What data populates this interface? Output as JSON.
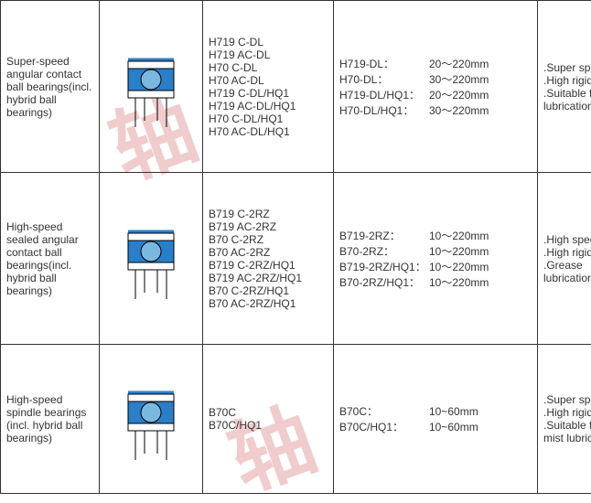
{
  "watermark": "轴",
  "rows": [
    {
      "name": "Super-speed angular contact ball bearings(incl. hybrid ball bearings)",
      "codes": [
        "H719 C-DL",
        "H719 AC-DL",
        "H70 C-DL",
        "H70 AC-DL",
        "H719 C-DL/HQ1",
        "H719 AC-DL/HQ1",
        "H70 C-DL/HQ1",
        "H70 AC-DL/HQ1"
      ],
      "sizes": [
        {
          "k": "H719-DL：",
          "v": "20～220mm"
        },
        {
          "k": "H70-DL：",
          "v": "30～220mm"
        },
        {
          "k": "H719-DL/HQ1：",
          "v": "20～220mm"
        },
        {
          "k": "H70-DL/HQ1：",
          "v": "30～220mm"
        }
      ],
      "feat": [
        ".Super speed",
        ".High rigidity",
        ".Suitable for direct lubrication"
      ],
      "icon_colors": {
        "outer": "#2a7fc9",
        "ball": "#7ab8e0"
      }
    },
    {
      "name": "High-speed sealed angular contact ball bearings(incl. hybrid ball bearings)",
      "codes": [
        "B719 C-2RZ",
        "B719 AC-2RZ",
        "B70 C-2RZ",
        "B70 AC-2RZ",
        "B719 C-2RZ/HQ1",
        "B719 AC-2RZ/HQ1",
        "B70 C-2RZ/HQ1",
        "B70 AC-2RZ/HQ1"
      ],
      "sizes": [
        {
          "k": "B719-2RZ：",
          "v": "10～220mm"
        },
        {
          "k": "B70-2RZ：",
          "v": "10～220mm"
        },
        {
          "k": "B719-2RZ/HQ1：",
          "v": "10～220mm"
        },
        {
          "k": "B70-2RZ/HQ1：",
          "v": "10～220mm"
        }
      ],
      "feat": [
        ".High speed",
        ".High rigidity",
        ".Grease lubrication"
      ],
      "icon_colors": {
        "outer": "#2a7fc9",
        "ball": "#7ab8e0"
      }
    },
    {
      "name": "High-speed spindle bearings (incl. hybrid ball bearings)",
      "codes": [
        "B70C",
        "B70C/HQ1"
      ],
      "sizes": [
        {
          "k": "B70C：",
          "v": "10~60mm"
        },
        {
          "k": "B70C/HQ1：",
          "v": "10~60mm"
        }
      ],
      "feat": [
        ".Super speed",
        ".High rigidity",
        ".Suitable for oil mist lubrication"
      ],
      "icon_colors": {
        "outer": "#2a7fc9",
        "ball": "#7ab8e0"
      }
    }
  ]
}
